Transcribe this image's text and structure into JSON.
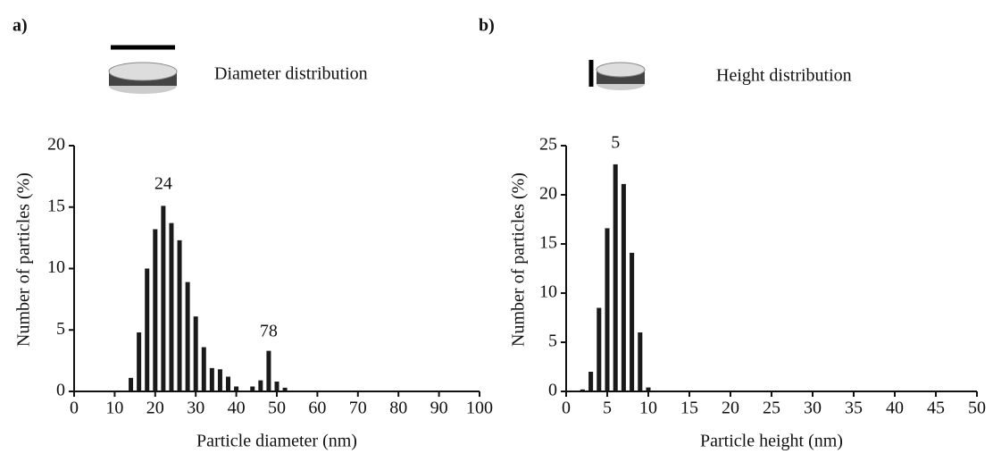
{
  "chart_data": [
    {
      "type": "bar",
      "panel_label": "a)",
      "legend_text": "Diameter distribution",
      "xlabel": "Particle diameter (nm)",
      "ylabel": "Number of particles (%)",
      "x": [
        14,
        16,
        18,
        20,
        22,
        24,
        26,
        28,
        30,
        32,
        34,
        36,
        38,
        40,
        42,
        44,
        46,
        48,
        50,
        52
      ],
      "values": [
        1.1,
        4.8,
        10.0,
        13.2,
        15.1,
        13.7,
        12.3,
        8.9,
        6.1,
        3.6,
        1.9,
        1.8,
        1.2,
        0.4,
        0,
        0.4,
        0.9,
        3.3,
        0.8,
        0.3
      ],
      "color": "#1a1a1a",
      "xlim": [
        0,
        100
      ],
      "ylim": [
        0,
        20
      ],
      "xticks": [
        0,
        10,
        20,
        30,
        40,
        50,
        60,
        70,
        80,
        90,
        100
      ],
      "yticks": [
        0,
        5,
        10,
        15,
        20
      ],
      "annotations": [
        {
          "text": "24",
          "x": 22,
          "y": 16.8
        },
        {
          "text": "78",
          "x": 48,
          "y": 4.8
        }
      ]
    },
    {
      "type": "bar",
      "panel_label": "b)",
      "legend_text": "Height distribution",
      "xlabel": "Particle height (nm)",
      "ylabel": "Number of particles (%)",
      "x": [
        2,
        3,
        4,
        5,
        6,
        7,
        8,
        9,
        10
      ],
      "values": [
        0.2,
        2.0,
        8.5,
        16.6,
        23.1,
        21.1,
        14.1,
        6.0,
        0.4
      ],
      "color": "#1a1a1a",
      "xlim": [
        0,
        50
      ],
      "ylim": [
        0,
        25
      ],
      "xticks": [
        0,
        5,
        10,
        15,
        20,
        25,
        30,
        35,
        40,
        45,
        50
      ],
      "yticks": [
        0,
        5,
        10,
        15,
        20,
        25
      ],
      "annotations": [
        {
          "text": "5",
          "x": 6,
          "y": 25.2
        }
      ]
    }
  ]
}
